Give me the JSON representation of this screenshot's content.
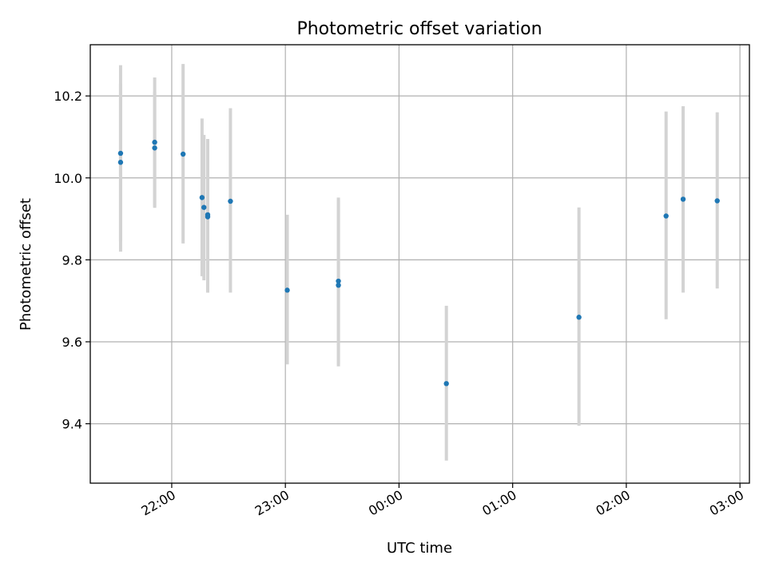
{
  "chart_data": {
    "type": "scatter",
    "title": "Photometric offset variation",
    "xlabel": "UTC time",
    "ylabel": "Photometric offset",
    "x_axis_type": "time",
    "xlim": [
      "21:17",
      "03:05"
    ],
    "ylim": [
      9.255,
      10.325
    ],
    "grid": true,
    "x_ticks": [
      "22:00",
      "23:00",
      "00:00",
      "01:00",
      "02:00",
      "03:00"
    ],
    "y_ticks": [
      "9.4",
      "9.6",
      "9.8",
      "10.0",
      "10.2"
    ],
    "colors": {
      "point": "#1f77b4",
      "errorbar": "#d3d3d3"
    },
    "points": [
      {
        "x": "21:33",
        "y": 10.06,
        "yerr_low": 9.82,
        "yerr_high": 10.275
      },
      {
        "x": "21:33",
        "y": 10.038,
        "yerr_low": 9.845,
        "yerr_high": 10.23
      },
      {
        "x": "21:51",
        "y": 10.087,
        "yerr_low": 9.927,
        "yerr_high": 10.245
      },
      {
        "x": "21:51",
        "y": 10.073,
        "yerr_low": 9.93,
        "yerr_high": 10.21
      },
      {
        "x": "22:06",
        "y": 10.058,
        "yerr_low": 9.84,
        "yerr_high": 10.278
      },
      {
        "x": "22:16",
        "y": 9.952,
        "yerr_low": 9.76,
        "yerr_high": 10.145
      },
      {
        "x": "22:17",
        "y": 9.928,
        "yerr_low": 9.75,
        "yerr_high": 10.105
      },
      {
        "x": "22:19",
        "y": 9.91,
        "yerr_low": 9.72,
        "yerr_high": 10.095
      },
      {
        "x": "22:19",
        "y": 9.905,
        "yerr_low": 9.72,
        "yerr_high": 10.09
      },
      {
        "x": "22:31",
        "y": 9.943,
        "yerr_low": 9.72,
        "yerr_high": 10.17
      },
      {
        "x": "23:01",
        "y": 9.726,
        "yerr_low": 9.545,
        "yerr_high": 9.91
      },
      {
        "x": "23:28",
        "y": 9.748,
        "yerr_low": 9.54,
        "yerr_high": 9.952
      },
      {
        "x": "23:28",
        "y": 9.738,
        "yerr_low": 9.545,
        "yerr_high": 9.945
      },
      {
        "x": "00:25",
        "y": 9.498,
        "yerr_low": 9.31,
        "yerr_high": 9.688
      },
      {
        "x": "01:35",
        "y": 9.66,
        "yerr_low": 9.395,
        "yerr_high": 9.928
      },
      {
        "x": "02:21",
        "y": 9.907,
        "yerr_low": 9.655,
        "yerr_high": 10.162
      },
      {
        "x": "02:30",
        "y": 9.948,
        "yerr_low": 9.72,
        "yerr_high": 10.175
      },
      {
        "x": "02:48",
        "y": 9.944,
        "yerr_low": 9.73,
        "yerr_high": 10.16
      }
    ]
  }
}
